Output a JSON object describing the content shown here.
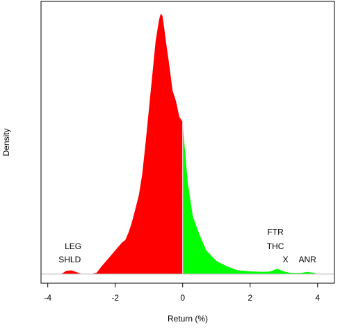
{
  "chart_data": {
    "type": "area",
    "title": "",
    "xlabel": "Return (%)",
    "ylabel": "Density",
    "xlim": [
      -4.2,
      4.5
    ],
    "ylim": [
      -0.035,
      1.04
    ],
    "xticks": [
      -4,
      -2,
      0,
      2,
      4
    ],
    "xtick_labels": [
      "-4",
      "-2",
      "0",
      "2",
      "4"
    ],
    "yticks_shown": false,
    "grid": false,
    "negative_color": "#ff0000",
    "positive_color": "#00ff00",
    "split_at": 0,
    "density": {
      "x": [
        -4.0,
        -3.6,
        -3.45,
        -3.3,
        -3.1,
        -3.0,
        -2.7,
        -2.55,
        -2.4,
        -2.2,
        -2.0,
        -1.8,
        -1.7,
        -1.6,
        -1.5,
        -1.4,
        -1.3,
        -1.2,
        -1.1,
        -1.0,
        -0.9,
        -0.8,
        -0.7,
        -0.65,
        -0.6,
        -0.55,
        -0.5,
        -0.4,
        -0.3,
        -0.2,
        -0.1,
        0.0,
        0.05,
        0.15,
        0.3,
        0.5,
        0.7,
        1.0,
        1.3,
        1.6,
        2.0,
        2.4,
        2.6,
        2.8,
        3.0,
        3.2,
        3.5,
        3.7,
        3.9,
        4.0
      ],
      "y": [
        0.0,
        0.0,
        0.012,
        0.014,
        0.005,
        0.0,
        0.0,
        0.005,
        0.03,
        0.06,
        0.09,
        0.12,
        0.13,
        0.16,
        0.2,
        0.25,
        0.3,
        0.38,
        0.5,
        0.63,
        0.76,
        0.89,
        0.97,
        0.994,
        0.985,
        0.94,
        0.89,
        0.8,
        0.7,
        0.66,
        0.6,
        0.58,
        0.5,
        0.35,
        0.22,
        0.15,
        0.09,
        0.05,
        0.03,
        0.015,
        0.01,
        0.008,
        0.01,
        0.02,
        0.01,
        0.004,
        0.004,
        0.008,
        0.004,
        0.0
      ]
    },
    "annotations": [
      {
        "text": "LEG",
        "x": -3.25,
        "y": 0.095
      },
      {
        "text": "SHLD",
        "x": -3.35,
        "y": 0.045
      },
      {
        "text": "FTR",
        "x": 2.75,
        "y": 0.15
      },
      {
        "text": "THC",
        "x": 2.75,
        "y": 0.095
      },
      {
        "text": "X",
        "x": 3.05,
        "y": 0.045
      },
      {
        "text": "ANR",
        "x": 3.7,
        "y": 0.045
      }
    ]
  }
}
